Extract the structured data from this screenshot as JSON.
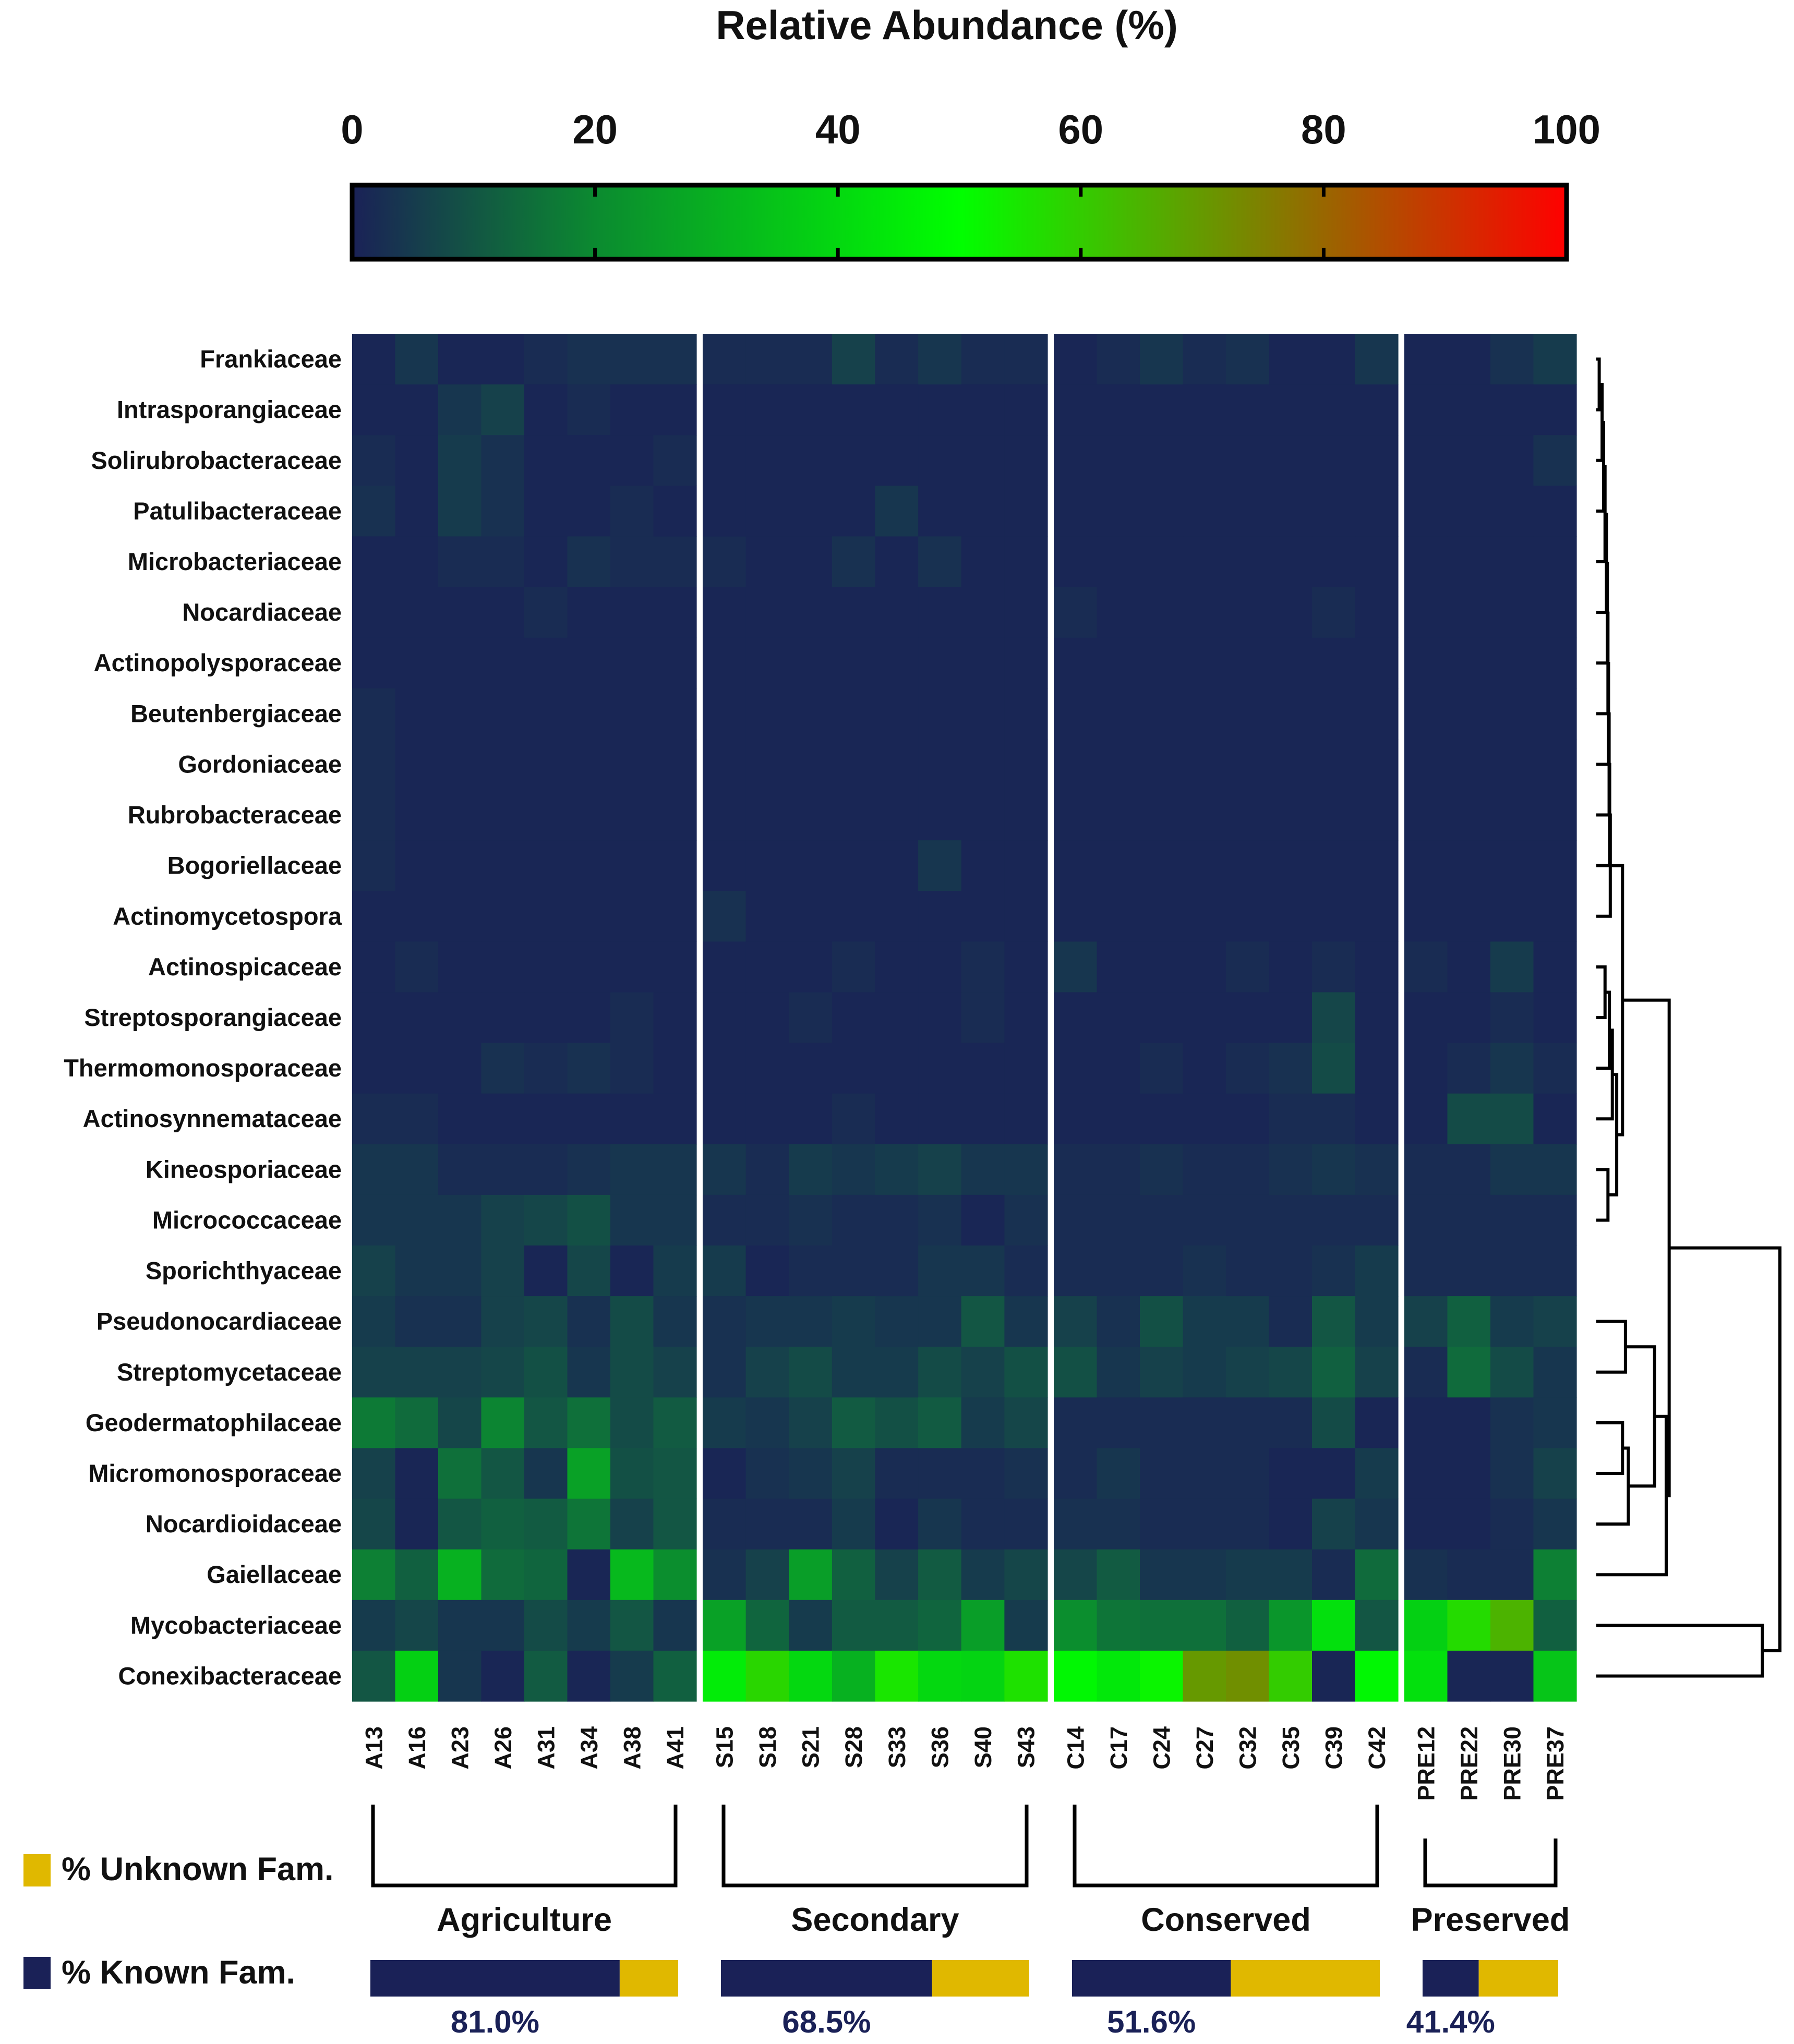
{
  "chart_data": {
    "type": "heatmap",
    "title": "Relative  Abundance (%)",
    "colorscale": {
      "min": 0,
      "max": 100,
      "ticks": [
        "0",
        "20",
        "40",
        "60",
        "80",
        "100"
      ],
      "stops": [
        {
          "v": 0,
          "color": "#1a2157"
        },
        {
          "v": 20,
          "color": "#0b8a30"
        },
        {
          "v": 50,
          "color": "#00ff00"
        },
        {
          "v": 75,
          "color": "#7f8000"
        },
        {
          "v": 100,
          "color": "#ff0000"
        }
      ]
    },
    "rows": [
      "Frankiaceae",
      "Intrasporangiaceae",
      "Solirubrobacteraceae",
      "Patulibacteraceae",
      "Microbacteriaceae",
      "Nocardiaceae",
      "Actinopolysporaceae",
      "Beutenbergiaceae",
      "Gordoniaceae",
      "Rubrobacteraceae",
      "Bogoriellaceae",
      "Actinomycetospora",
      "Actinospicaceae",
      "Streptosporangiaceae",
      "Thermomonosporaceae",
      "Actinosynnemataceae",
      "Kineosporiaceae",
      "Micrococcaceae",
      "Sporichthyaceae",
      "Pseudonocardiaceae",
      "Streptomycetaceae",
      "Geodermatophilaceae",
      "Micromonosporaceae",
      "Nocardioidaceae",
      "Gaiellaceae",
      "Mycobacteriaceae",
      "Conexibacteraceae"
    ],
    "columns": [
      "A13",
      "A16",
      "A23",
      "A26",
      "A31",
      "A34",
      "A38",
      "A41",
      "S15",
      "S18",
      "S21",
      "S28",
      "S33",
      "S36",
      "S40",
      "S43",
      "C14",
      "C17",
      "C24",
      "C27",
      "C32",
      "C35",
      "C39",
      "C42",
      "PRE12",
      "PRE22",
      "PRE30",
      "PRE37"
    ],
    "groups": [
      {
        "name": "Agriculture",
        "count": 8,
        "known_pct": 81.0,
        "known_label": "81.0%"
      },
      {
        "name": "Secondary",
        "count": 8,
        "known_pct": 68.5,
        "known_label": "68.5%"
      },
      {
        "name": "Conserved",
        "count": 8,
        "known_pct": 51.6,
        "known_label": "51.6%"
      },
      {
        "name": "Preserved",
        "count": 4,
        "known_pct": 41.4,
        "known_label": "41.4%"
      }
    ],
    "values": [
      [
        1,
        4,
        1,
        1,
        2,
        3,
        3,
        3,
        2,
        2,
        2,
        6,
        2,
        4,
        2,
        2,
        1,
        2,
        4,
        2,
        3,
        1,
        1,
        4,
        1,
        1,
        3,
        5
      ],
      [
        1,
        1,
        4,
        6,
        1,
        2,
        1,
        1,
        1,
        1,
        1,
        1,
        1,
        1,
        1,
        1,
        1,
        1,
        1,
        1,
        1,
        1,
        1,
        1,
        1,
        1,
        1,
        1
      ],
      [
        2,
        1,
        5,
        3,
        1,
        1,
        1,
        2,
        1,
        1,
        1,
        1,
        1,
        1,
        1,
        1,
        1,
        1,
        1,
        1,
        1,
        1,
        1,
        1,
        1,
        1,
        1,
        3
      ],
      [
        3,
        1,
        5,
        3,
        1,
        1,
        2,
        1,
        1,
        1,
        1,
        1,
        4,
        1,
        1,
        1,
        1,
        1,
        1,
        1,
        1,
        1,
        1,
        1,
        1,
        1,
        1,
        1
      ],
      [
        1,
        1,
        2,
        2,
        1,
        3,
        2,
        2,
        2,
        1,
        1,
        3,
        1,
        3,
        1,
        1,
        1,
        1,
        1,
        1,
        1,
        1,
        1,
        1,
        1,
        1,
        1,
        1
      ],
      [
        1,
        1,
        1,
        1,
        2,
        1,
        1,
        1,
        1,
        1,
        1,
        1,
        1,
        1,
        1,
        1,
        2,
        1,
        1,
        1,
        1,
        1,
        2,
        1,
        1,
        1,
        1,
        1
      ],
      [
        1,
        1,
        1,
        1,
        1,
        1,
        1,
        1,
        1,
        1,
        1,
        1,
        1,
        1,
        1,
        1,
        1,
        1,
        1,
        1,
        1,
        1,
        1,
        1,
        1,
        1,
        1,
        1
      ],
      [
        2,
        1,
        1,
        1,
        1,
        1,
        1,
        1,
        1,
        1,
        1,
        1,
        1,
        1,
        1,
        1,
        1,
        1,
        1,
        1,
        1,
        1,
        1,
        1,
        1,
        1,
        1,
        1
      ],
      [
        2,
        1,
        1,
        1,
        1,
        1,
        1,
        1,
        1,
        1,
        1,
        1,
        1,
        1,
        1,
        1,
        1,
        1,
        1,
        1,
        1,
        1,
        1,
        1,
        1,
        1,
        1,
        1
      ],
      [
        2,
        1,
        1,
        1,
        1,
        1,
        1,
        1,
        1,
        1,
        1,
        1,
        1,
        1,
        1,
        1,
        1,
        1,
        1,
        1,
        1,
        1,
        1,
        1,
        1,
        1,
        1,
        1
      ],
      [
        2,
        1,
        1,
        1,
        1,
        1,
        1,
        1,
        1,
        1,
        1,
        1,
        1,
        4,
        1,
        1,
        1,
        1,
        1,
        1,
        1,
        1,
        1,
        1,
        1,
        1,
        1,
        1
      ],
      [
        1,
        1,
        1,
        1,
        1,
        1,
        1,
        1,
        3,
        1,
        1,
        1,
        1,
        1,
        1,
        1,
        1,
        1,
        1,
        1,
        1,
        1,
        1,
        1,
        1,
        1,
        1,
        1
      ],
      [
        1,
        2,
        1,
        1,
        1,
        1,
        1,
        1,
        1,
        1,
        1,
        2,
        1,
        1,
        2,
        1,
        4,
        1,
        1,
        1,
        2,
        1,
        2,
        1,
        2,
        1,
        5,
        1
      ],
      [
        1,
        1,
        1,
        1,
        1,
        1,
        2,
        1,
        1,
        1,
        2,
        1,
        1,
        1,
        2,
        1,
        1,
        1,
        1,
        1,
        1,
        1,
        7,
        1,
        1,
        1,
        2,
        1
      ],
      [
        1,
        1,
        1,
        3,
        2,
        3,
        2,
        1,
        1,
        1,
        1,
        1,
        1,
        1,
        1,
        1,
        1,
        1,
        2,
        1,
        2,
        3,
        8,
        1,
        1,
        2,
        4,
        2
      ],
      [
        2,
        2,
        1,
        1,
        1,
        1,
        1,
        1,
        1,
        1,
        1,
        2,
        1,
        1,
        1,
        1,
        1,
        1,
        1,
        1,
        1,
        2,
        2,
        1,
        1,
        8,
        8,
        1
      ],
      [
        4,
        4,
        2,
        2,
        2,
        3,
        4,
        4,
        4,
        2,
        5,
        4,
        5,
        6,
        4,
        4,
        2,
        2,
        3,
        2,
        2,
        3,
        4,
        3,
        2,
        2,
        4,
        4
      ],
      [
        4,
        4,
        4,
        6,
        7,
        9,
        4,
        4,
        2,
        2,
        3,
        2,
        2,
        3,
        1,
        3,
        2,
        2,
        2,
        2,
        2,
        2,
        2,
        2,
        2,
        2,
        2,
        2
      ],
      [
        6,
        4,
        4,
        6,
        1,
        7,
        1,
        5,
        5,
        1,
        2,
        2,
        2,
        4,
        4,
        2,
        2,
        2,
        2,
        3,
        2,
        2,
        3,
        5,
        2,
        2,
        2,
        2
      ],
      [
        5,
        3,
        3,
        6,
        7,
        3,
        8,
        4,
        3,
        4,
        4,
        5,
        4,
        4,
        10,
        4,
        6,
        3,
        9,
        5,
        5,
        2,
        10,
        5,
        6,
        12,
        5,
        6
      ],
      [
        6,
        6,
        6,
        7,
        9,
        4,
        8,
        6,
        3,
        6,
        8,
        5,
        5,
        8,
        6,
        9,
        9,
        4,
        6,
        5,
        6,
        7,
        12,
        6,
        2,
        14,
        8,
        4
      ],
      [
        17,
        14,
        7,
        19,
        10,
        15,
        8,
        11,
        5,
        4,
        6,
        11,
        9,
        11,
        5,
        7,
        2,
        2,
        2,
        2,
        2,
        2,
        8,
        1,
        1,
        1,
        3,
        4
      ],
      [
        6,
        1,
        15,
        10,
        4,
        26,
        9,
        10,
        1,
        3,
        4,
        6,
        2,
        2,
        2,
        3,
        2,
        4,
        2,
        2,
        2,
        1,
        1,
        5,
        1,
        1,
        3,
        6
      ],
      [
        7,
        1,
        10,
        12,
        11,
        16,
        6,
        10,
        2,
        2,
        2,
        5,
        1,
        4,
        2,
        2,
        3,
        3,
        2,
        2,
        2,
        1,
        6,
        4,
        1,
        1,
        2,
        4
      ],
      [
        18,
        12,
        30,
        14,
        13,
        1,
        32,
        21,
        3,
        6,
        25,
        12,
        6,
        11,
        5,
        7,
        7,
        11,
        4,
        4,
        5,
        5,
        2,
        14,
        3,
        2,
        2,
        18
      ],
      [
        5,
        7,
        4,
        4,
        8,
        5,
        10,
        4,
        26,
        13,
        5,
        11,
        11,
        13,
        25,
        5,
        21,
        16,
        15,
        15,
        12,
        23,
        42,
        10,
        38,
        57,
        65,
        12
      ],
      [
        10,
        38,
        4,
        1,
        11,
        1,
        5,
        12,
        45,
        58,
        40,
        30,
        55,
        40,
        39,
        56,
        48,
        44,
        52,
        70,
        72,
        60,
        1,
        48,
        42,
        1,
        1,
        35
      ]
    ]
  },
  "legend": {
    "unknown_label": "% Unknown Fam.",
    "known_label": "% Known Fam.",
    "unknown_color": "#e0b800",
    "known_color": "#1a2157"
  },
  "dendrogram": {
    "links": [
      [
        0,
        1,
        0.1
      ],
      [
        27,
        2,
        0.2
      ],
      [
        28,
        3,
        0.25
      ],
      [
        29,
        4,
        0.3
      ],
      [
        30,
        5,
        0.35
      ],
      [
        31,
        6,
        0.38
      ],
      [
        32,
        7,
        0.4
      ],
      [
        33,
        8,
        0.42
      ],
      [
        34,
        9,
        0.44
      ],
      [
        35,
        10,
        0.46
      ],
      [
        36,
        11,
        0.48
      ],
      [
        12,
        13,
        0.3
      ],
      [
        38,
        14,
        0.45
      ],
      [
        39,
        15,
        0.55
      ],
      [
        16,
        17,
        0.4
      ],
      [
        40,
        41,
        0.7
      ],
      [
        37,
        42,
        0.9
      ],
      [
        19,
        20,
        1.0
      ],
      [
        21,
        22,
        0.9
      ],
      [
        45,
        23,
        1.1
      ],
      [
        44,
        46,
        2.0
      ],
      [
        24,
        47,
        2.4
      ],
      [
        25,
        26,
        5.7
      ],
      [
        43,
        48,
        2.5
      ],
      [
        49,
        50,
        6.3
      ]
    ]
  }
}
